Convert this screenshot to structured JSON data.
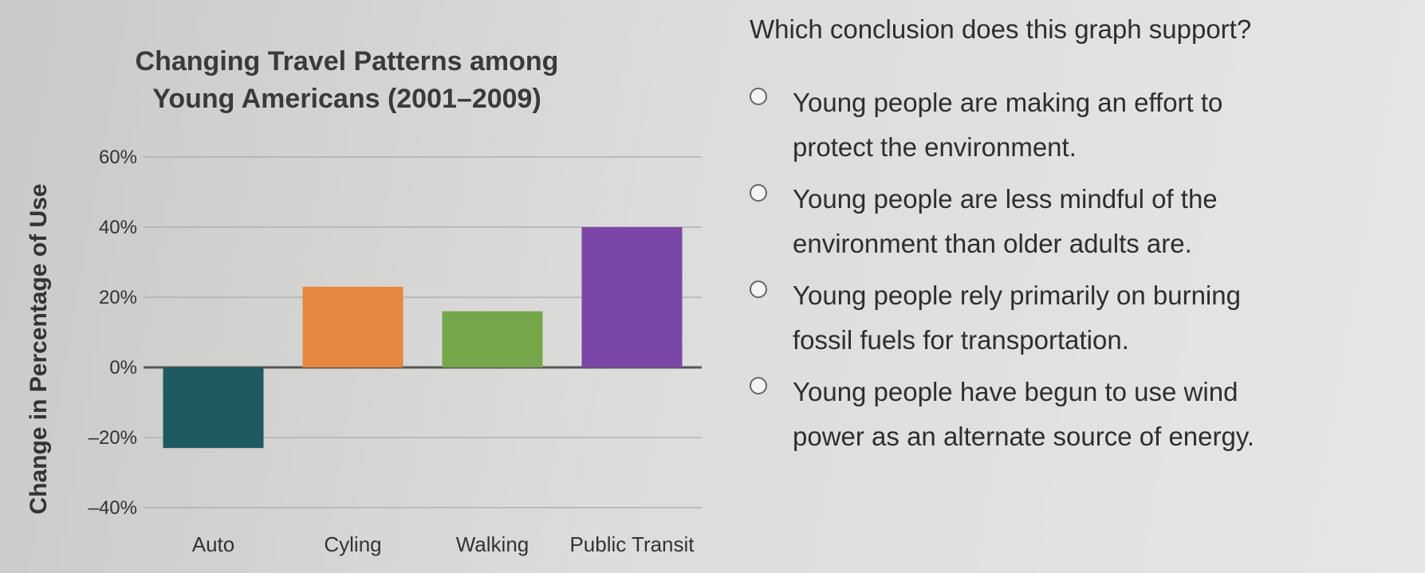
{
  "chart_data": {
    "type": "bar",
    "title_lines": [
      "Changing Travel Patterns among",
      "Young Americans (2001–2009)"
    ],
    "ylabel": "Change in Percentage of Use",
    "xlabel": "",
    "categories": [
      "Auto",
      "Cyling",
      "Walking",
      "Public Transit"
    ],
    "values": [
      -23,
      23,
      16,
      40
    ],
    "colors": [
      "#1e5a60",
      "#e8873f",
      "#76a64a",
      "#7a47a8"
    ],
    "ylim": [
      -40,
      60
    ],
    "yticks": [
      60,
      40,
      20,
      0,
      -20,
      -40
    ],
    "ytick_labels": [
      "60%",
      "40%",
      "20%",
      "0%",
      "–20%",
      "–40%"
    ],
    "grid": true
  },
  "question": {
    "prompt": "Which conclusion does this graph support?",
    "options": [
      {
        "lines": [
          "Young people are making an effort to",
          "protect the environment."
        ]
      },
      {
        "lines": [
          "Young people are less mindful of the",
          "environment than older adults are."
        ]
      },
      {
        "lines": [
          "Young people rely primarily on burning",
          "fossil fuels for transportation."
        ]
      },
      {
        "lines": [
          "Young people have begun to use wind",
          "power as an alternate source of energy."
        ]
      }
    ]
  }
}
